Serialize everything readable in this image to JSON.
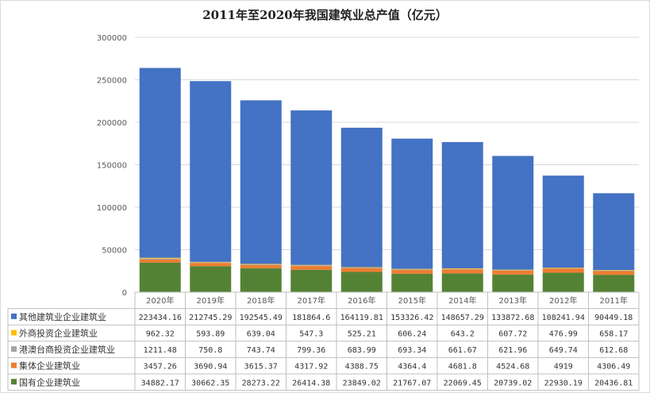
{
  "chart_data": {
    "type": "bar",
    "stacked": true,
    "title": "2011年至2020年我国建筑业总产值（亿元）",
    "categories": [
      "2020年",
      "2019年",
      "2018年",
      "2017年",
      "2016年",
      "2015年",
      "2014年",
      "2013年",
      "2012年",
      "2011年"
    ],
    "ylim": [
      0,
      300000
    ],
    "y_ticks": [
      "0",
      "50000",
      "100000",
      "150000",
      "200000",
      "250000",
      "300000"
    ],
    "grid": true,
    "legend_placement": "data-table",
    "series": [
      {
        "name": "国有企业建筑业",
        "color": "#548235",
        "values": [
          34882.17,
          30662.35,
          28273.22,
          26414.38,
          23849.02,
          21767.07,
          22069.45,
          20739.02,
          22930.19,
          20436.81
        ],
        "labels": [
          "34882.17",
          "30662.35",
          "28273.22",
          "26414.38",
          "23849.02",
          "21767.07",
          "22069.45",
          "20739.02",
          "22930.19",
          "20436.81"
        ]
      },
      {
        "name": "集体企业建筑业",
        "color": "#ED7D31",
        "values": [
          3457.26,
          3690.94,
          3615.37,
          4317.92,
          4388.75,
          4364.4,
          4681.8,
          4524.68,
          4919,
          4306.49
        ],
        "labels": [
          "3457.26",
          "3690.94",
          "3615.37",
          "4317.92",
          "4388.75",
          "4364.4",
          "4681.8",
          "4524.68",
          "4919",
          "4306.49"
        ]
      },
      {
        "name": "港澳台商投资企业建筑业",
        "color": "#A5A5A5",
        "values": [
          1211.48,
          750.8,
          743.74,
          799.36,
          683.99,
          693.34,
          661.67,
          621.96,
          649.74,
          612.68
        ],
        "labels": [
          "1211.48",
          "750.8",
          "743.74",
          "799.36",
          "683.99",
          "693.34",
          "661.67",
          "621.96",
          "649.74",
          "612.68"
        ]
      },
      {
        "name": "外商投资企业建筑业",
        "color": "#FFC000",
        "values": [
          962.32,
          593.89,
          639.04,
          547.3,
          525.21,
          606.24,
          643.2,
          607.72,
          476.99,
          658.17
        ],
        "labels": [
          "962.32",
          "593.89",
          "639.04",
          "547.3",
          "525.21",
          "606.24",
          "643.2",
          "607.72",
          "476.99",
          "658.17"
        ]
      },
      {
        "name": "其他建筑业企业建筑业",
        "color": "#4472C4",
        "values": [
          223434.16,
          212745.29,
          192545.49,
          181864.6,
          164119.81,
          153326.42,
          148657.29,
          133872.68,
          108241.94,
          90449.18
        ],
        "labels": [
          "223434.16",
          "212745.29",
          "192545.49",
          "181864.6",
          "164119.81",
          "153326.42",
          "148657.29",
          "133872.68",
          "108241.94",
          "90449.18"
        ]
      }
    ],
    "table_row_order": [
      "其他建筑业企业建筑业",
      "外商投资企业建筑业",
      "港澳台商投资企业建筑业",
      "集体企业建筑业",
      "国有企业建筑业"
    ]
  }
}
